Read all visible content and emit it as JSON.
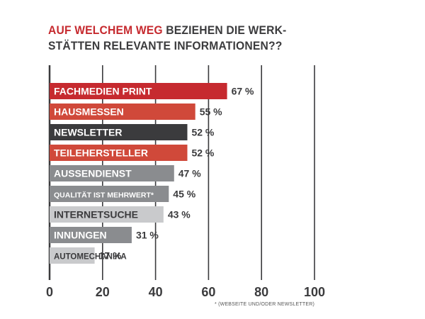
{
  "title_accent": "AUF WELCHEM WEG",
  "title_rest": "BEZIEHEN DIE WERK-",
  "title_line2": "STÄTTEN RELEVANTE INFORMATIONEN??",
  "footnote": "* (WEBSEITE UND/ODER NEWSLETTER)",
  "colors": {
    "red": "#c62a2f",
    "orange_red": "#d0493a",
    "dark": "#3b3b3d",
    "grey": "#8a8c8f",
    "light_grey": "#c9cacc",
    "text": "#3b3b3d"
  },
  "chart_data": {
    "type": "bar",
    "orientation": "horizontal",
    "title": "AUF WELCHEM WEG BEZIEHEN DIE WERKSTÄTTEN RELEVANTE INFORMATIONEN??",
    "categories": [
      "FACHMEDIEN PRINT",
      "HAUSMESSEN",
      "NEWSLETTER",
      "TEILEHERSTELLER",
      "AUSSENDIENST",
      "QUALITÄT IST MEHRWERT*",
      "INTERNETSUCHE",
      "INNUNGEN",
      "AUTOMECHANIKA"
    ],
    "values": [
      67,
      55,
      52,
      52,
      47,
      45,
      43,
      31,
      17
    ],
    "value_labels": [
      "67 %",
      "55 %",
      "52 %",
      "52 %",
      "47 %",
      "45 %",
      "43 %",
      "31 %",
      "17 %"
    ],
    "bar_colors": [
      "#c62a2f",
      "#d0493a",
      "#3b3b3d",
      "#d0493a",
      "#8a8c8f",
      "#8a8c8f",
      "#c9cacc",
      "#8a8c8f",
      "#c9cacc"
    ],
    "label_colors": [
      "#ffffff",
      "#ffffff",
      "#ffffff",
      "#ffffff",
      "#ffffff",
      "#ffffff",
      "#3b3b3d",
      "#ffffff",
      "#3b3b3d"
    ],
    "x_ticks": [
      0,
      20,
      40,
      60,
      80,
      100
    ],
    "x_tick_labels": [
      "0",
      "20",
      "40",
      "60",
      "80",
      "100"
    ],
    "xlim": [
      0,
      100
    ],
    "grid": true,
    "legend": "none",
    "annotations": [
      "* (WEBSEITE UND/ODER NEWSLETTER)"
    ]
  }
}
